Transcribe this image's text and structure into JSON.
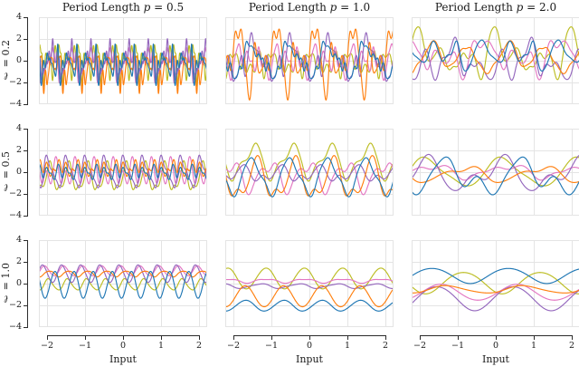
{
  "figure": {
    "background": "#ffffff",
    "text_color": "#1a1a1a",
    "grid_color": "#e4e4e4",
    "spine_color": "#2b2b2b",
    "sample_colors_draw_order": [
      "#bcbd22",
      "#e377c2",
      "#9467bd",
      "#ff7f0e",
      "#1f77b4"
    ],
    "sample_color_names": [
      "olive",
      "pink",
      "purple",
      "orange",
      "blue"
    ],
    "columns": [
      {
        "title_prefix": "Period Length ",
        "title_var": "p",
        "title_eq": " = 0.5",
        "period": 0.5
      },
      {
        "title_prefix": "Period Length ",
        "title_var": "p",
        "title_eq": " = 1.0",
        "period": 1.0
      },
      {
        "title_prefix": "Period Length ",
        "title_var": "p",
        "title_eq": " = 2.0",
        "period": 2.0
      }
    ],
    "rows": [
      {
        "label_var": "ℓ",
        "label_eq": " = 0.2",
        "lengthscale": 0.2
      },
      {
        "label_var": "ℓ",
        "label_eq": " = 0.5",
        "lengthscale": 0.5
      },
      {
        "label_var": "ℓ",
        "label_eq": " = 1.0",
        "lengthscale": 1.0
      }
    ],
    "x_axis": {
      "label": "Input",
      "tick_labels": [
        "−2",
        "−1",
        "0",
        "1",
        "2"
      ]
    },
    "y_axis": {
      "tick_labels": [
        "4",
        "2",
        "0",
        "−2",
        "−4"
      ]
    }
  },
  "chart_data": [
    {
      "type": "line",
      "row": 0,
      "col": 0,
      "title": "Period Length p = 0.5",
      "row_label": "ℓ = 0.2",
      "period": 0.5,
      "lengthscale": 0.2,
      "n_samples": 5,
      "xlim": [
        -2.2,
        2.2
      ],
      "ylim": [
        -4,
        4
      ],
      "xticks": [
        -2,
        -1,
        0,
        1,
        2
      ],
      "yticks": [
        -4,
        -2,
        0,
        2,
        4
      ],
      "grid": true,
      "legend": false,
      "seed": 101,
      "series_note": "5 random periodic-kernel GP sample paths, std ≈ 1, exactly periodic with period p"
    },
    {
      "type": "line",
      "row": 0,
      "col": 1,
      "title": "Period Length p = 1.0",
      "row_label": "ℓ = 0.2",
      "period": 1.0,
      "lengthscale": 0.2,
      "n_samples": 5,
      "xlim": [
        -2.2,
        2.2
      ],
      "ylim": [
        -4,
        4
      ],
      "xticks": [
        -2,
        -1,
        0,
        1,
        2
      ],
      "yticks": [
        -4,
        -2,
        0,
        2,
        4
      ],
      "grid": true,
      "legend": false,
      "seed": 102,
      "series_note": "5 random periodic-kernel GP sample paths, std ≈ 1, exactly periodic with period p"
    },
    {
      "type": "line",
      "row": 0,
      "col": 2,
      "title": "Period Length p = 2.0",
      "row_label": "ℓ = 0.2",
      "period": 2.0,
      "lengthscale": 0.2,
      "n_samples": 5,
      "xlim": [
        -2.2,
        2.2
      ],
      "ylim": [
        -4,
        4
      ],
      "xticks": [
        -2,
        -1,
        0,
        1,
        2
      ],
      "yticks": [
        -4,
        -2,
        0,
        2,
        4
      ],
      "grid": true,
      "legend": false,
      "seed": 103,
      "series_note": "5 random periodic-kernel GP sample paths, std ≈ 1, exactly periodic with period p"
    },
    {
      "type": "line",
      "row": 1,
      "col": 0,
      "title": "Period Length p = 0.5",
      "row_label": "ℓ = 0.5",
      "period": 0.5,
      "lengthscale": 0.5,
      "n_samples": 5,
      "xlim": [
        -2.2,
        2.2
      ],
      "ylim": [
        -4,
        4
      ],
      "xticks": [
        -2,
        -1,
        0,
        1,
        2
      ],
      "yticks": [
        -4,
        -2,
        0,
        2,
        4
      ],
      "grid": true,
      "legend": false,
      "seed": 201,
      "series_note": "5 random periodic-kernel GP sample paths, std ≈ 1, exactly periodic with period p"
    },
    {
      "type": "line",
      "row": 1,
      "col": 1,
      "title": "Period Length p = 1.0",
      "row_label": "ℓ = 0.5",
      "period": 1.0,
      "lengthscale": 0.5,
      "n_samples": 5,
      "xlim": [
        -2.2,
        2.2
      ],
      "ylim": [
        -4,
        4
      ],
      "xticks": [
        -2,
        -1,
        0,
        1,
        2
      ],
      "yticks": [
        -4,
        -2,
        0,
        2,
        4
      ],
      "grid": true,
      "legend": false,
      "seed": 202,
      "series_note": "5 random periodic-kernel GP sample paths, std ≈ 1, exactly periodic with period p"
    },
    {
      "type": "line",
      "row": 1,
      "col": 2,
      "title": "Period Length p = 2.0",
      "row_label": "ℓ = 0.5",
      "period": 2.0,
      "lengthscale": 0.5,
      "n_samples": 5,
      "xlim": [
        -2.2,
        2.2
      ],
      "ylim": [
        -4,
        4
      ],
      "xticks": [
        -2,
        -1,
        0,
        1,
        2
      ],
      "yticks": [
        -4,
        -2,
        0,
        2,
        4
      ],
      "grid": true,
      "legend": false,
      "seed": 203,
      "series_note": "5 random periodic-kernel GP sample paths, std ≈ 1, exactly periodic with period p"
    },
    {
      "type": "line",
      "row": 2,
      "col": 0,
      "title": "Period Length p = 0.5",
      "row_label": "ℓ = 1.0",
      "period": 0.5,
      "lengthscale": 1.0,
      "n_samples": 5,
      "xlim": [
        -2.2,
        2.2
      ],
      "ylim": [
        -4,
        4
      ],
      "xticks": [
        -2,
        -1,
        0,
        1,
        2
      ],
      "yticks": [
        -4,
        -2,
        0,
        2,
        4
      ],
      "grid": true,
      "legend": false,
      "seed": 301,
      "series_note": "5 random periodic-kernel GP sample paths, std ≈ 1, exactly periodic with period p"
    },
    {
      "type": "line",
      "row": 2,
      "col": 1,
      "title": "Period Length p = 1.0",
      "row_label": "ℓ = 1.0",
      "period": 1.0,
      "lengthscale": 1.0,
      "n_samples": 5,
      "xlim": [
        -2.2,
        2.2
      ],
      "ylim": [
        -4,
        4
      ],
      "xticks": [
        -2,
        -1,
        0,
        1,
        2
      ],
      "yticks": [
        -4,
        -2,
        0,
        2,
        4
      ],
      "grid": true,
      "legend": false,
      "seed": 302,
      "series_note": "5 random periodic-kernel GP sample paths, std ≈ 1, exactly periodic with period p",
      "xlabel": "Input"
    },
    {
      "type": "line",
      "row": 2,
      "col": 2,
      "title": "Period Length p = 2.0",
      "row_label": "ℓ = 1.0",
      "period": 2.0,
      "lengthscale": 1.0,
      "n_samples": 5,
      "xlim": [
        -2.2,
        2.2
      ],
      "ylim": [
        -4,
        4
      ],
      "xticks": [
        -2,
        -1,
        0,
        1,
        2
      ],
      "yticks": [
        -4,
        -2,
        0,
        2,
        4
      ],
      "grid": true,
      "legend": false,
      "seed": 303,
      "series_note": "5 random periodic-kernel GP sample paths, std ≈ 1, exactly periodic with period p"
    }
  ]
}
